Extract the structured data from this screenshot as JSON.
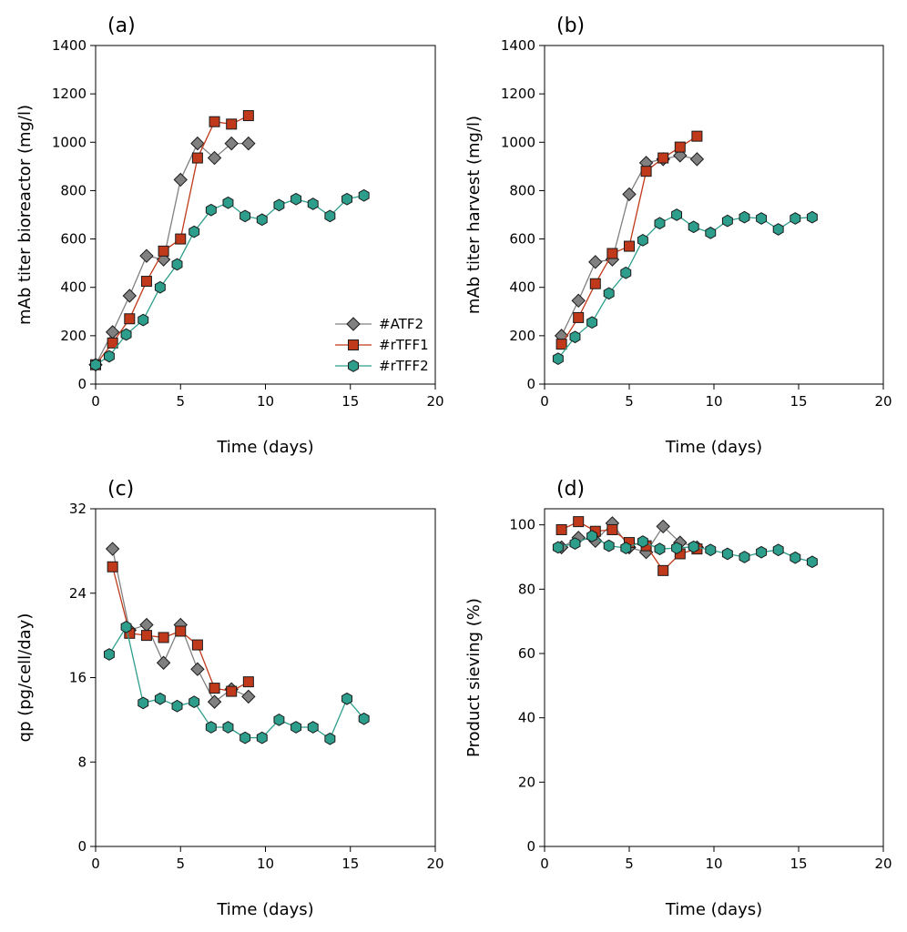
{
  "colors": {
    "ATF2": "#808080",
    "rTFF1": "#c0391b",
    "rTFF2": "#2e9e8c"
  },
  "chart_data": [
    {
      "panel": "(a)",
      "type": "line",
      "xlabel": "Time (days)",
      "ylabel": "mAb titer bioreactor (mg/l)",
      "xlim": [
        0,
        20
      ],
      "xticks": [
        "0",
        "5",
        "10",
        "15",
        "20"
      ],
      "ylim": [
        0,
        1400
      ],
      "yticks": [
        "0",
        "200",
        "400",
        "600",
        "800",
        "1000",
        "1200",
        "1400"
      ],
      "legend": "lower-right",
      "series": [
        {
          "name": "#ATF2",
          "marker": "diamond",
          "x": [
            0,
            1,
            2,
            3,
            4,
            5,
            6,
            7,
            8,
            9
          ],
          "y": [
            80,
            215,
            365,
            530,
            515,
            845,
            995,
            935,
            995,
            995
          ]
        },
        {
          "name": "#rTFF1",
          "marker": "square",
          "x": [
            0,
            1,
            2,
            3,
            4,
            5,
            6,
            7,
            8,
            9
          ],
          "y": [
            80,
            170,
            270,
            425,
            550,
            600,
            935,
            1085,
            1075,
            1110
          ]
        },
        {
          "name": "#rTFF2",
          "marker": "hexagon",
          "x": [
            0,
            0.8,
            1.8,
            2.8,
            3.8,
            4.8,
            5.8,
            6.8,
            7.8,
            8.8,
            9.8,
            10.8,
            11.8,
            12.8,
            13.8,
            14.8,
            15.8
          ],
          "y": [
            80,
            115,
            205,
            265,
            400,
            495,
            630,
            720,
            750,
            695,
            680,
            740,
            765,
            745,
            695,
            765,
            780
          ]
        }
      ]
    },
    {
      "panel": "(b)",
      "type": "line",
      "xlabel": "Time (days)",
      "ylabel": "mAb titer harvest (mg/l)",
      "xlim": [
        0,
        20
      ],
      "xticks": [
        "0",
        "5",
        "10",
        "15",
        "20"
      ],
      "ylim": [
        0,
        1400
      ],
      "yticks": [
        "0",
        "200",
        "400",
        "600",
        "800",
        "1000",
        "1200",
        "1400"
      ],
      "series": [
        {
          "name": "#ATF2",
          "marker": "diamond",
          "x": [
            1,
            2,
            3,
            4,
            5,
            6,
            7,
            8,
            9
          ],
          "y": [
            200,
            345,
            505,
            515,
            785,
            915,
            930,
            945,
            930
          ]
        },
        {
          "name": "#rTFF1",
          "marker": "square",
          "x": [
            1,
            2,
            3,
            4,
            5,
            6,
            7,
            8,
            9
          ],
          "y": [
            165,
            275,
            415,
            540,
            570,
            880,
            935,
            980,
            1025
          ]
        },
        {
          "name": "#rTFF2",
          "marker": "hexagon",
          "x": [
            0.8,
            1.8,
            2.8,
            3.8,
            4.8,
            5.8,
            6.8,
            7.8,
            8.8,
            9.8,
            10.8,
            11.8,
            12.8,
            13.8,
            14.8,
            15.8
          ],
          "y": [
            105,
            195,
            255,
            375,
            460,
            595,
            665,
            700,
            650,
            625,
            675,
            690,
            685,
            640,
            685,
            690
          ]
        }
      ]
    },
    {
      "panel": "(c)",
      "type": "line",
      "xlabel": "Time (days)",
      "ylabel": "qp (pg/cell/day)",
      "xlim": [
        0,
        20
      ],
      "xticks": [
        "0",
        "5",
        "10",
        "15",
        "20"
      ],
      "ylim": [
        0,
        32
      ],
      "yticks": [
        "0",
        "8",
        "16",
        "24",
        "32"
      ],
      "series": [
        {
          "name": "#ATF2",
          "marker": "diamond",
          "x": [
            1,
            2,
            3,
            4,
            5,
            6,
            7,
            8,
            9
          ],
          "y": [
            28.2,
            20.5,
            21.0,
            17.4,
            21.0,
            16.8,
            13.7,
            14.9,
            14.2
          ]
        },
        {
          "name": "#rTFF1",
          "marker": "square",
          "x": [
            1,
            2,
            3,
            4,
            5,
            6,
            7,
            8,
            9
          ],
          "y": [
            26.5,
            20.2,
            20.0,
            19.8,
            20.4,
            19.1,
            15.0,
            14.7,
            15.6
          ]
        },
        {
          "name": "#rTFF2",
          "marker": "hexagon",
          "x": [
            0.8,
            1.8,
            2.8,
            3.8,
            4.8,
            5.8,
            6.8,
            7.8,
            8.8,
            9.8,
            10.8,
            11.8,
            12.8,
            13.8,
            14.8,
            15.8
          ],
          "y": [
            18.2,
            20.8,
            13.6,
            14.0,
            13.3,
            13.7,
            11.3,
            11.3,
            10.3,
            10.3,
            12.0,
            11.3,
            11.3,
            10.2,
            14.0,
            12.1
          ]
        }
      ]
    },
    {
      "panel": "(d)",
      "type": "line",
      "xlabel": "Time (days)",
      "ylabel": "Product sieving (%)",
      "xlim": [
        0,
        20
      ],
      "xticks": [
        "0",
        "5",
        "10",
        "15",
        "20"
      ],
      "ylim": [
        0,
        105
      ],
      "yticks": [
        "0",
        "20",
        "40",
        "60",
        "80",
        "100"
      ],
      "series": [
        {
          "name": "#ATF2",
          "marker": "diamond",
          "x": [
            1,
            2,
            3,
            4,
            5,
            6,
            7,
            8,
            9
          ],
          "y": [
            93,
            96,
            95,
            100.5,
            93,
            91.5,
            99.5,
            94.5,
            93
          ]
        },
        {
          "name": "#rTFF1",
          "marker": "square",
          "x": [
            1,
            2,
            3,
            4,
            5,
            6,
            7,
            8,
            9
          ],
          "y": [
            98.5,
            101,
            98,
            98.5,
            94.5,
            93.5,
            85.8,
            91,
            92.5
          ]
        },
        {
          "name": "#rTFF2",
          "marker": "hexagon",
          "x": [
            0.8,
            1.8,
            2.8,
            3.8,
            4.8,
            5.8,
            6.8,
            7.8,
            8.8,
            9.8,
            10.8,
            11.8,
            12.8,
            13.8,
            14.8,
            15.8
          ],
          "y": [
            93,
            94.2,
            96.5,
            93.5,
            92.8,
            94.8,
            92.5,
            92.8,
            93.2,
            92.2,
            91,
            90,
            91.5,
            92.2,
            89.8,
            88.5
          ]
        }
      ]
    }
  ]
}
